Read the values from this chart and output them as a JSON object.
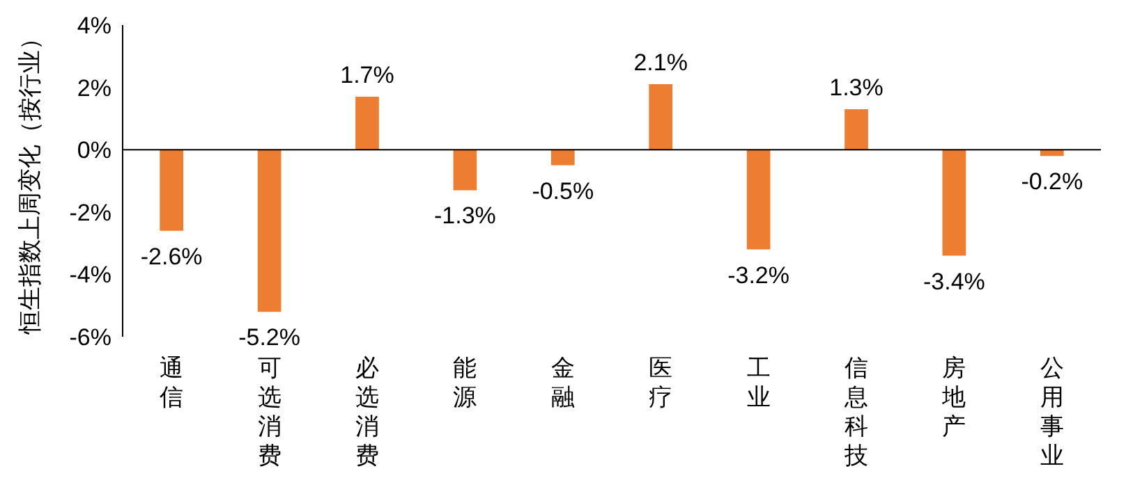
{
  "chart_data": {
    "type": "bar",
    "ylabel": "恒生指数上周变化（按行业）",
    "categories": [
      "通信",
      "可选消费",
      "必选消费",
      "能源",
      "金融",
      "医疗",
      "工业",
      "信息科技",
      "房地产",
      "公用事业"
    ],
    "values": [
      -2.6,
      -5.2,
      1.7,
      -1.3,
      -0.5,
      2.1,
      -3.2,
      1.3,
      -3.4,
      -0.2
    ],
    "value_labels": [
      "-2.6%",
      "-5.2%",
      "1.7%",
      "-1.3%",
      "-0.5%",
      "2.1%",
      "-3.2%",
      "1.3%",
      "-3.4%",
      "-0.2%"
    ],
    "color": "#ed7d31",
    "ylim": [
      -6,
      4
    ],
    "yticks": [
      {
        "value": -6,
        "label": "-6%"
      },
      {
        "value": -4,
        "label": "-4%"
      },
      {
        "value": -2,
        "label": "-2%"
      },
      {
        "value": 0,
        "label": "0%"
      },
      {
        "value": 2,
        "label": "2%"
      },
      {
        "value": 4,
        "label": "4%"
      }
    ],
    "legend": false
  }
}
